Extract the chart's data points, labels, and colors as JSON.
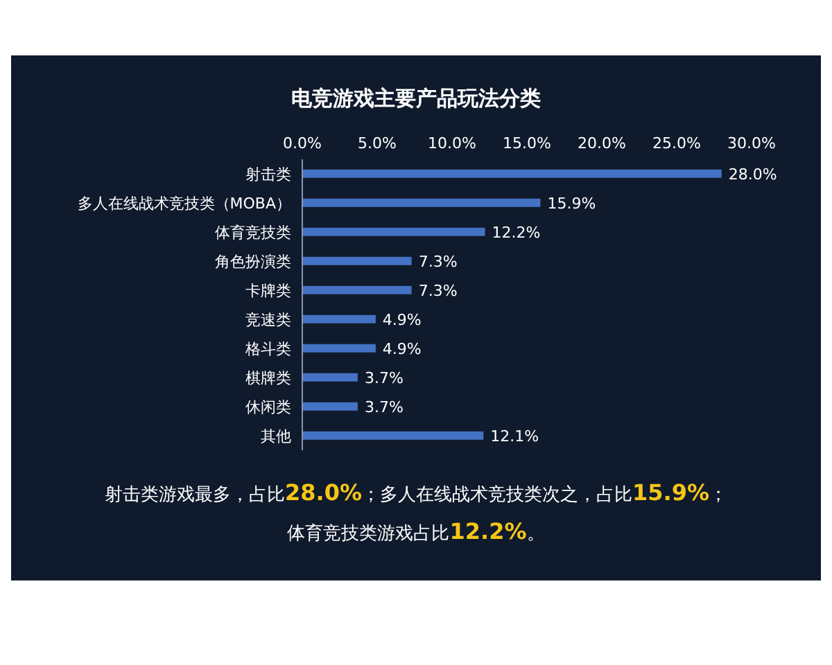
{
  "chart_data": {
    "type": "bar",
    "orientation": "horizontal",
    "title": "电竞游戏主要产品玩法分类",
    "categories": [
      "射击类",
      "多人在线战术竞技类（MOBA）",
      "体育竞技类",
      "角色扮演类",
      "卡牌类",
      "竞速类",
      "格斗类",
      "棋牌类",
      "休闲类",
      "其他"
    ],
    "values": [
      28.0,
      15.9,
      12.2,
      7.3,
      7.3,
      4.9,
      4.9,
      3.7,
      3.7,
      12.1
    ],
    "value_labels": [
      "28.0%",
      "15.9%",
      "12.2%",
      "7.3%",
      "7.3%",
      "4.9%",
      "4.9%",
      "3.7%",
      "3.7%",
      "12.1%"
    ],
    "color": "#4472c4",
    "xlim": [
      0,
      30
    ],
    "xticks": [
      {
        "value": 0,
        "label": "0.0%"
      },
      {
        "value": 5,
        "label": "5.0%"
      },
      {
        "value": 10,
        "label": "10.0%"
      },
      {
        "value": 15,
        "label": "15.0%"
      },
      {
        "value": 20,
        "label": "20.0%"
      },
      {
        "value": 25,
        "label": "25.0%"
      },
      {
        "value": 30,
        "label": "30.0%"
      }
    ],
    "grid": false,
    "annotations": [
      "射击类游戏最多，占比28.0%；多人在线战术竞技类次之，占比15.9%；",
      "体育竞技类游戏占比12.2%。"
    ]
  }
}
